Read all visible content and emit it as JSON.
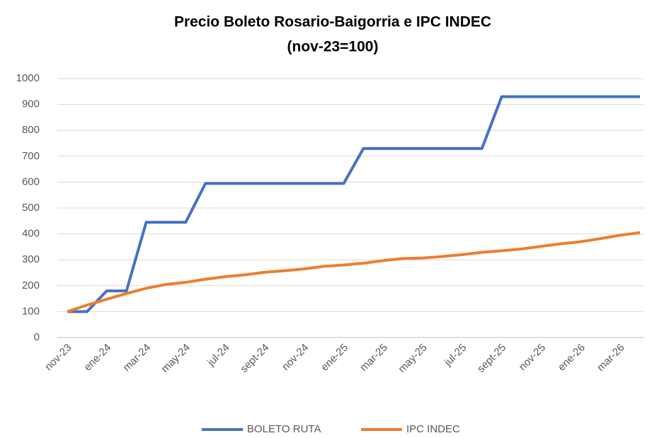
{
  "chart_data": {
    "type": "line",
    "title": "Precio Boleto Rosario-Baigorria e IPC INDEC",
    "subtitle": "(nov-23=100)",
    "categories": [
      "nov-23",
      null,
      "ene-24",
      null,
      "mar-24",
      null,
      "may-24",
      null,
      "jul-24",
      null,
      "sept-24",
      null,
      "nov-24",
      null,
      "ene-25",
      null,
      "mar-25",
      null,
      "may-25",
      null,
      "jul-25",
      null,
      "sept-25",
      null,
      "nov-25",
      null,
      "ene-26",
      null,
      "mar-26",
      null
    ],
    "series": [
      {
        "name": "BOLETO RUTA",
        "color": "#4472c4",
        "values": [
          100,
          100,
          180,
          180,
          445,
          445,
          445,
          595,
          595,
          595,
          595,
          595,
          595,
          595,
          595,
          730,
          730,
          730,
          730,
          730,
          730,
          730,
          930,
          930,
          930,
          930,
          930,
          930,
          930,
          930
        ]
      },
      {
        "name": "IPC INDEC",
        "color": "#ed7d31",
        "values": [
          100,
          125,
          148,
          170,
          190,
          205,
          213,
          225,
          235,
          242,
          252,
          258,
          265,
          275,
          280,
          287,
          297,
          305,
          307,
          313,
          320,
          329,
          335,
          342,
          352,
          362,
          370,
          382,
          395,
          405
        ]
      }
    ],
    "ylim": [
      0,
      1000
    ],
    "yticks": [
      0,
      100,
      200,
      300,
      400,
      500,
      600,
      700,
      800,
      900,
      1000
    ],
    "grid": true,
    "legend": "bottom"
  }
}
